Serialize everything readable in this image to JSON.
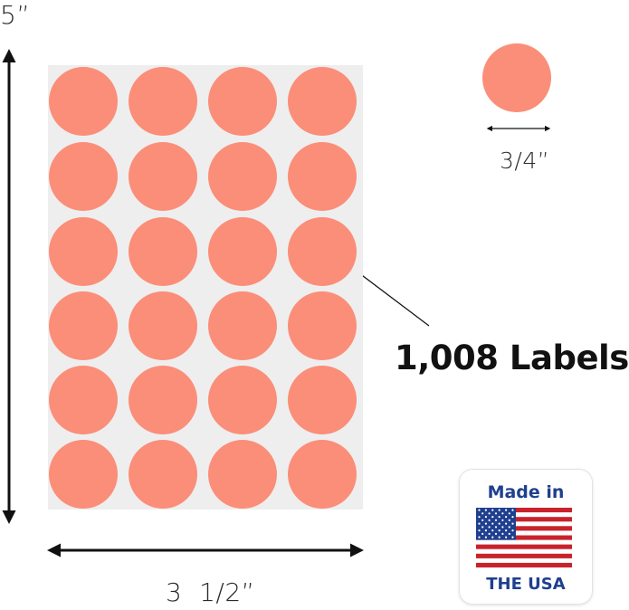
{
  "dimensions": {
    "height_label": "5”",
    "width_label": "3  1/2”",
    "diameter_label": "3/4”"
  },
  "sheet": {
    "rows": 6,
    "columns": 4,
    "sheet_color": "#eeeeef",
    "dot_color": "#fb8e78"
  },
  "callout": {
    "text": "1,008 Labels"
  },
  "badge": {
    "top_text": "Made in",
    "bottom_text": "THE USA",
    "text_color": "#1f3f8f",
    "flag_icon": "us-flag-icon"
  }
}
